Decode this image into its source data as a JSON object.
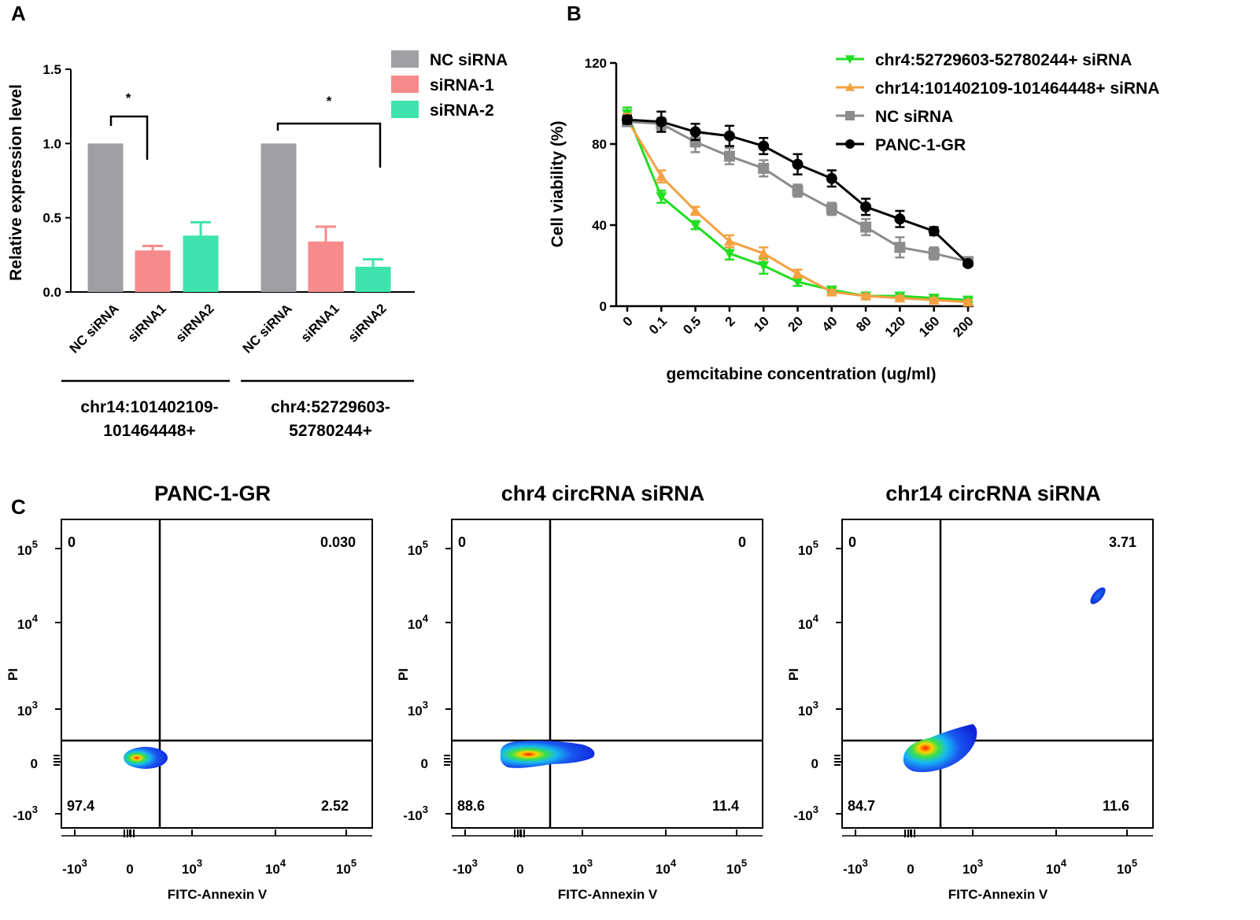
{
  "panel_labels": {
    "a": "A",
    "b": "B",
    "c": "C"
  },
  "chart_data": [
    {
      "type": "bar",
      "panel": "A",
      "ylabel": "Relative expression level",
      "ylim": [
        0,
        1.5
      ],
      "yticks": [
        "0.0",
        "0.5",
        "1.0",
        "1.5"
      ],
      "xtick_labels": [
        "NC siRNA",
        "siRNA1",
        "siRNA2",
        "NC siRNA",
        "siRNA1",
        "siRNA2"
      ],
      "groups": [
        {
          "label_line1": "chr14:101402109-",
          "label_line2": "101464448+"
        },
        {
          "label_line1": "chr4:52729603-",
          "label_line2": "52780244+"
        }
      ],
      "legend": [
        "NC siRNA",
        "siRNA-1",
        "siRNA-2"
      ],
      "colors": [
        "#a09fa4",
        "#f68b8b",
        "#3fe3ae"
      ],
      "bars": [
        {
          "group": 0,
          "series": 0,
          "value": 1.0,
          "error": 0
        },
        {
          "group": 0,
          "series": 1,
          "value": 0.28,
          "error": 0.03
        },
        {
          "group": 0,
          "series": 2,
          "value": 0.38,
          "error": 0.09
        },
        {
          "group": 1,
          "series": 0,
          "value": 1.0,
          "error": 0
        },
        {
          "group": 1,
          "series": 1,
          "value": 0.34,
          "error": 0.1
        },
        {
          "group": 1,
          "series": 2,
          "value": 0.17,
          "error": 0.05
        }
      ],
      "significance": [
        "*",
        "*"
      ]
    },
    {
      "type": "line",
      "panel": "B",
      "xlabel": "gemcitabine concentration (ug/ml)",
      "ylabel": "Cell viability (%)",
      "ylim": [
        0,
        120
      ],
      "yticks": [
        "0",
        "40",
        "80",
        "120"
      ],
      "categories": [
        "0",
        "0.1",
        "0.5",
        "2",
        "10",
        "20",
        "40",
        "80",
        "120",
        "160",
        "200"
      ],
      "series": [
        {
          "name": "chr4:52729603-52780244+ siRNA",
          "color": "#22dd22",
          "marker": "triangle-down",
          "values": [
            95,
            54,
            40,
            26,
            20,
            12,
            8,
            5,
            5,
            4,
            3
          ],
          "errors": [
            3,
            3,
            2,
            3,
            4,
            2,
            1,
            1,
            1,
            1,
            1
          ]
        },
        {
          "name": "chr14:101402109-101464448+ siRNA",
          "color": "#f4a142",
          "marker": "triangle-up",
          "values": [
            92,
            64,
            47,
            32,
            26,
            16,
            7,
            5,
            4,
            3,
            2
          ],
          "errors": [
            3,
            3,
            2,
            3,
            3,
            2,
            1,
            1,
            1,
            1,
            1
          ]
        },
        {
          "name": "NC siRNA",
          "color": "#8c8c8c",
          "marker": "square",
          "values": [
            91,
            90,
            81,
            74,
            68,
            57,
            48,
            39,
            29,
            26,
            22
          ],
          "errors": [
            2,
            3,
            5,
            4,
            4,
            3,
            3,
            4,
            5,
            3,
            2
          ]
        },
        {
          "name": "PANC-1-GR",
          "color": "#000000",
          "marker": "circle",
          "values": [
            92,
            91,
            86,
            84,
            79,
            70,
            63,
            49,
            43,
            37,
            21
          ],
          "errors": [
            2,
            5,
            4,
            5,
            4,
            5,
            4,
            4,
            4,
            2,
            1
          ]
        }
      ]
    },
    {
      "type": "scatter",
      "panel": "C",
      "xlabel": "FITC-Annexin V",
      "ylabel": "PI",
      "axis_ticks": {
        "y": [
          {
            "base": "10",
            "exp": "5"
          },
          {
            "base": "10",
            "exp": "4"
          },
          {
            "base": "10",
            "exp": "3"
          },
          {
            "base": "0",
            "exp": ""
          },
          {
            "base": "-10",
            "exp": "3"
          }
        ],
        "x": [
          {
            "base": "-10",
            "exp": "3"
          },
          {
            "base": "0",
            "exp": ""
          },
          {
            "base": "10",
            "exp": "3"
          },
          {
            "base": "10",
            "exp": "4"
          },
          {
            "base": "10",
            "exp": "5"
          }
        ]
      },
      "plots": [
        {
          "title": "PANC-1-GR",
          "quadrants": {
            "upper_left": "0",
            "upper_right": "0.030",
            "lower_left": "97.4",
            "lower_right": "2.52"
          }
        },
        {
          "title": "chr4 circRNA siRNA",
          "quadrants": {
            "upper_left": "0",
            "upper_right": "0",
            "lower_left": "88.6",
            "lower_right": "11.4"
          }
        },
        {
          "title": "chr14 circRNA siRNA",
          "quadrants": {
            "upper_left": "0",
            "upper_right": "3.71",
            "lower_left": "84.7",
            "lower_right": "11.6"
          }
        }
      ]
    }
  ]
}
